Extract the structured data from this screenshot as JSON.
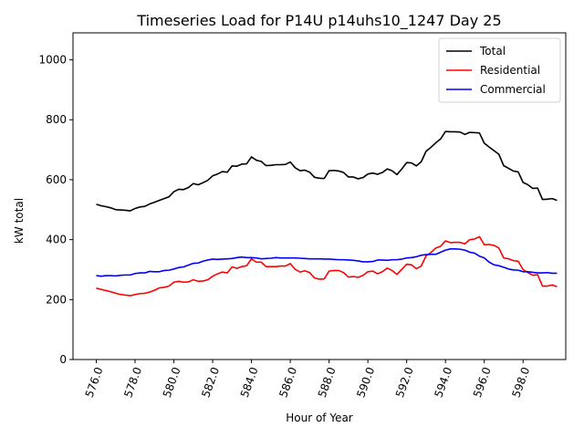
{
  "chart_data": {
    "type": "line",
    "title": "Timeseries Load for P14U p14uhs10_1247  Day 25",
    "xlabel": "Hour of Year",
    "ylabel": "kW total",
    "xlim": [
      574.8,
      600.2
    ],
    "ylim": [
      0,
      1090
    ],
    "xticks": [
      576.0,
      578.0,
      580.0,
      582.0,
      584.0,
      586.0,
      588.0,
      590.0,
      592.0,
      594.0,
      596.0,
      598.0
    ],
    "xtick_labels": [
      "576.0",
      "578.0",
      "580.0",
      "582.0",
      "584.0",
      "586.0",
      "588.0",
      "590.0",
      "592.0",
      "594.0",
      "596.0",
      "598.0"
    ],
    "yticks": [
      0,
      200,
      400,
      600,
      800,
      1000
    ],
    "ytick_labels": [
      "0",
      "200",
      "400",
      "600",
      "800",
      "1000"
    ],
    "legend_position": "top-right",
    "x_start": 576.0,
    "x_step": 0.25,
    "series": [
      {
        "name": "Total",
        "color": "#000000",
        "values": [
          518,
          513,
          510,
          506,
          500,
          499,
          498,
          496,
          504,
          509,
          511,
          519,
          525,
          531,
          537,
          543,
          560,
          568,
          567,
          574,
          587,
          583,
          590,
          598,
          613,
          619,
          627,
          625,
          646,
          645,
          652,
          653,
          676,
          665,
          661,
          647,
          648,
          650,
          650,
          651,
          659,
          640,
          630,
          632,
          625,
          608,
          605,
          604,
          630,
          631,
          629,
          624,
          609,
          609,
          603,
          607,
          619,
          622,
          618,
          624,
          636,
          630,
          617,
          636,
          657,
          656,
          646,
          660,
          695,
          708,
          723,
          736,
          761,
          760,
          760,
          759,
          751,
          758,
          757,
          756,
          722,
          709,
          697,
          685,
          647,
          638,
          629,
          626,
          591,
          583,
          571,
          572,
          534,
          535,
          537,
          531
        ]
      },
      {
        "name": "Residential",
        "color": "#ff0000",
        "values": [
          238,
          234,
          230,
          226,
          221,
          217,
          215,
          213,
          217,
          220,
          221,
          225,
          231,
          239,
          241,
          245,
          258,
          261,
          258,
          259,
          266,
          261,
          262,
          266,
          278,
          286,
          292,
          289,
          309,
          304,
          310,
          313,
          336,
          325,
          325,
          310,
          310,
          310,
          312,
          312,
          320,
          301,
          292,
          296,
          290,
          272,
          268,
          269,
          295,
          297,
          297,
          290,
          275,
          277,
          274,
          281,
          293,
          295,
          286,
          293,
          305,
          297,
          284,
          301,
          318,
          316,
          303,
          312,
          346,
          357,
          372,
          378,
          396,
          390,
          391,
          391,
          386,
          400,
          402,
          410,
          383,
          384,
          381,
          372,
          339,
          336,
          330,
          328,
          300,
          290,
          281,
          283,
          245,
          245,
          249,
          243
        ]
      },
      {
        "name": "Commercial",
        "color": "#0000ff",
        "values": [
          280,
          278,
          280,
          280,
          279,
          281,
          282,
          282,
          287,
          289,
          289,
          294,
          293,
          293,
          297,
          298,
          302,
          307,
          309,
          315,
          321,
          322,
          328,
          332,
          335,
          334,
          335,
          336,
          337,
          340,
          342,
          340,
          340,
          339,
          336,
          337,
          338,
          340,
          339,
          339,
          339,
          339,
          338,
          337,
          336,
          336,
          336,
          335,
          335,
          334,
          333,
          333,
          332,
          331,
          329,
          326,
          326,
          327,
          332,
          332,
          331,
          333,
          333,
          335,
          339,
          340,
          343,
          348,
          350,
          351,
          351,
          358,
          365,
          369,
          369,
          368,
          365,
          358,
          355,
          345,
          339,
          325,
          316,
          313,
          308,
          302,
          299,
          298,
          293,
          293,
          291,
          289,
          289,
          290,
          288,
          288
        ]
      }
    ]
  }
}
